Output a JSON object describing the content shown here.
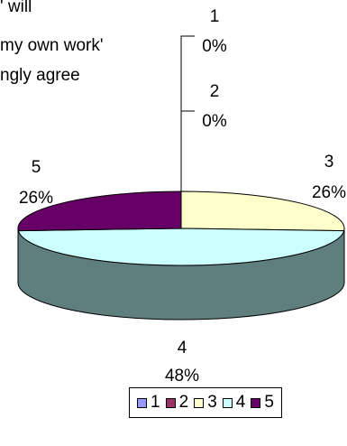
{
  "chart_data": {
    "type": "pie",
    "title_lines": [
      "' will",
      "my own work'",
      "ngly agree"
    ],
    "slices": [
      {
        "label": "1",
        "value": 0,
        "pct": "0%",
        "color": "#9999ff"
      },
      {
        "label": "2",
        "value": 0,
        "pct": "0%",
        "color": "#993366"
      },
      {
        "label": "3",
        "value": 26,
        "pct": "26%",
        "color": "#ffffcc"
      },
      {
        "label": "4",
        "value": 48,
        "pct": "48%",
        "color": "#ccffff"
      },
      {
        "label": "5",
        "value": 26,
        "pct": "26%",
        "color": "#660066"
      }
    ],
    "side_color": "#5f7f7f",
    "legend": [
      "1",
      "2",
      "3",
      "4",
      "5"
    ],
    "legend_placement": "bottom"
  }
}
